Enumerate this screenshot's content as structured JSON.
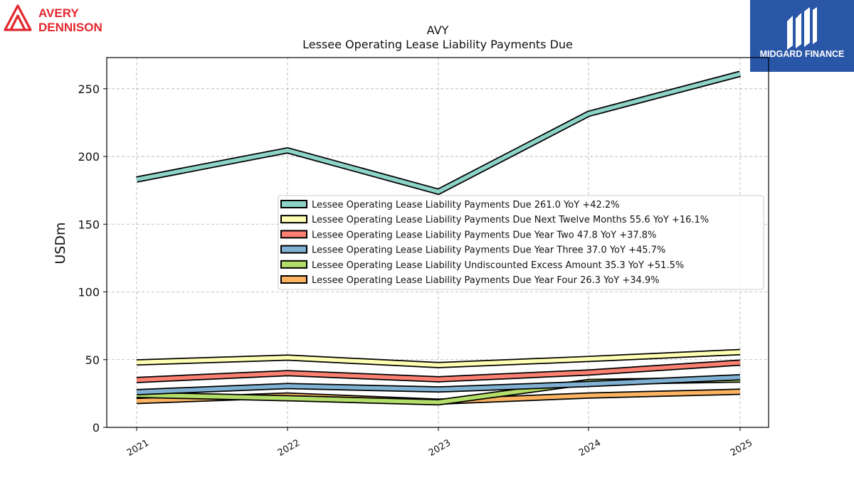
{
  "logos": {
    "left_line1": "AVERY",
    "left_line2": "DENNISON",
    "right_text": "MIDGARD FINANCE"
  },
  "colors": {
    "avery_red": "#e3262e",
    "midgard_blue": "#2a56a8",
    "grid": "#b0b0b0"
  },
  "chart_data": {
    "type": "line",
    "title": "AVY",
    "subtitle": "Lessee Operating Lease Liability Payments Due",
    "ylabel": "USDm",
    "xlabel": "",
    "x": [
      "2021",
      "2022",
      "2023",
      "2024",
      "2025"
    ],
    "ylim": [
      0,
      273
    ],
    "yticks": [
      0,
      50,
      100,
      150,
      200,
      250
    ],
    "grid": true,
    "legend_position": "center-right",
    "series": [
      {
        "name": "Lessee Operating Lease Liability Payments Due",
        "legend": "Lessee Operating Lease Liability Payments Due  261.0 YoY +42.2%",
        "color": "#8dd3c7",
        "values": [
          183.0,
          204.5,
          174.0,
          231.5,
          261.0
        ]
      },
      {
        "name": "Lessee Operating Lease Liability Payments Due Next Twelve Months",
        "legend": "Lessee Operating Lease Liability Payments Due Next Twelve Months  55.6 YoY +16.1%",
        "color": "#ffffb3",
        "values": [
          48.0,
          51.5,
          46.0,
          50.5,
          55.6
        ]
      },
      {
        "name": "Lessee Operating Lease Liability Payments Due Year Two",
        "legend": "Lessee Operating Lease Liability Payments Due Year Two  47.8 YoY +37.8%",
        "color": "#fb8072",
        "values": [
          35.0,
          40.0,
          35.5,
          40.5,
          47.8
        ]
      },
      {
        "name": "Lessee Operating Lease Liability Payments Due Year Three",
        "legend": "Lessee Operating Lease Liability Payments Due Year Three  37.0 YoY +45.7%",
        "color": "#80b1d3",
        "values": [
          26.0,
          30.5,
          28.0,
          32.0,
          37.0
        ]
      },
      {
        "name": "Lessee Operating Lease Liability Undiscounted Excess Amount",
        "legend": "Lessee Operating Lease Liability Undiscounted Excess Amount  35.3 YoY +51.5%",
        "color": "#b3de69",
        "values": [
          24.0,
          21.5,
          18.5,
          33.5,
          35.3
        ]
      },
      {
        "name": "Lessee Operating Lease Liability Payments Due Year Four",
        "legend": "Lessee Operating Lease Liability Payments Due Year Four  26.3 YoY +34.9%",
        "color": "#fdb462",
        "values": [
          19.5,
          23.5,
          19.0,
          23.5,
          26.3
        ]
      }
    ]
  }
}
